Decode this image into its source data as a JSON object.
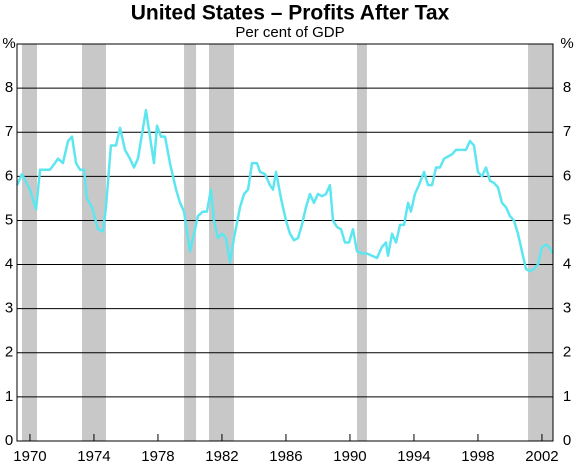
{
  "chart_data": {
    "type": "line",
    "title": "United States – Profits After Tax",
    "subtitle": "Per cent of GDP",
    "x": [
      1969.19,
      1969.5,
      1970,
      1970.38,
      1970.63,
      1971.25,
      1971.56,
      1971.75,
      1972.06,
      1972.38,
      1972.63,
      1972.88,
      1973.13,
      1973.38,
      1973.56,
      1973.88,
      1974.25,
      1974.56,
      1974.75,
      1975.06,
      1975.38,
      1975.63,
      1975.94,
      1976.25,
      1976.5,
      1976.75,
      1977.25,
      1977.5,
      1977.75,
      1977.94,
      1978.19,
      1978.44,
      1978.75,
      1979.13,
      1979.38,
      1979.63,
      1980,
      1980.25,
      1980.5,
      1980.81,
      1981.06,
      1981.31,
      1981.5,
      1981.75,
      1982,
      1982.25,
      1982.5,
      1982.75,
      1983.13,
      1983.38,
      1983.63,
      1983.88,
      1984.19,
      1984.38,
      1984.69,
      1985,
      1985.19,
      1985.38,
      1985.69,
      1986,
      1986.25,
      1986.5,
      1986.75,
      1987,
      1987.25,
      1987.5,
      1987.75,
      1988,
      1988.25,
      1988.5,
      1988.75,
      1988.94,
      1989.19,
      1989.44,
      1989.69,
      1989.94,
      1990.19,
      1990.44,
      1990.75,
      1991.06,
      1991.38,
      1991.69,
      1992,
      1992.25,
      1992.38,
      1992.63,
      1992.88,
      1993.13,
      1993.38,
      1993.63,
      1993.81,
      1994.06,
      1994.31,
      1994.63,
      1994.88,
      1995.13,
      1995.38,
      1995.63,
      1995.88,
      1996.13,
      1996.38,
      1996.63,
      1997,
      1997.25,
      1997.5,
      1997.75,
      1998,
      1998.25,
      1998.5,
      1998.75,
      1999,
      1999.25,
      1999.5,
      1999.75,
      2000,
      2000.25,
      2000.5,
      2000.75,
      2001,
      2001.25,
      2001.5,
      2001.75,
      2002,
      2002.25,
      2002.44,
      2002.69
    ],
    "series": [
      {
        "color": "#5ee6f0",
        "values": [
          5.8,
          6.05,
          5.7,
          5.25,
          6.15,
          6.15,
          6.3,
          6.4,
          6.3,
          6.8,
          6.9,
          6.3,
          6.15,
          6.15,
          5.5,
          5.3,
          4.8,
          4.75,
          5.3,
          6.7,
          6.7,
          7.1,
          6.6,
          6.4,
          6.2,
          6.4,
          7.5,
          6.9,
          6.3,
          7.15,
          6.9,
          6.9,
          6.3,
          5.7,
          5.4,
          5.2,
          4.3,
          4.7,
          5.1,
          5.2,
          5.2,
          5.7,
          5.0,
          4.6,
          4.7,
          4.6,
          4.05,
          4.6,
          5.3,
          5.6,
          5.7,
          6.3,
          6.3,
          6.1,
          6.05,
          5.8,
          5.7,
          6.1,
          5.5,
          5.0,
          4.7,
          4.55,
          4.6,
          4.9,
          5.3,
          5.6,
          5.4,
          5.6,
          5.55,
          5.6,
          5.8,
          5.0,
          4.85,
          4.8,
          4.5,
          4.5,
          4.8,
          4.3,
          4.25,
          4.25,
          4.2,
          4.15,
          4.4,
          4.5,
          4.2,
          4.7,
          4.5,
          4.9,
          4.9,
          5.4,
          5.2,
          5.6,
          5.8,
          6.1,
          5.8,
          5.8,
          6.2,
          6.2,
          6.4,
          6.45,
          6.5,
          6.6,
          6.6,
          6.6,
          6.8,
          6.7,
          6.1,
          6.0,
          6.2,
          5.9,
          5.85,
          5.75,
          5.4,
          5.3,
          5.1,
          5.0,
          4.7,
          4.3,
          3.9,
          3.85,
          3.9,
          4.0,
          4.4,
          4.45,
          4.4,
          4.25
        ]
      }
    ],
    "recessions": [
      [
        1969.5,
        1970.44
      ],
      [
        1973.25,
        1974.75
      ],
      [
        1979.63,
        1980.38
      ],
      [
        1981.19,
        1982.75
      ],
      [
        1990.44,
        1991.06
      ],
      [
        2001.13,
        2002.69
      ]
    ],
    "recession_color": "#c8c8c8",
    "xlim": [
      1969.19,
      2002.69
    ],
    "xticks": [
      1970,
      1974,
      1978,
      1982,
      1986,
      1990,
      1994,
      1998,
      2002
    ],
    "ylim": [
      0,
      9
    ],
    "yticks": [
      0,
      1,
      2,
      3,
      4,
      5,
      6,
      7,
      8,
      {
        "value": 9,
        "label": "%"
      }
    ],
    "grid": true
  }
}
